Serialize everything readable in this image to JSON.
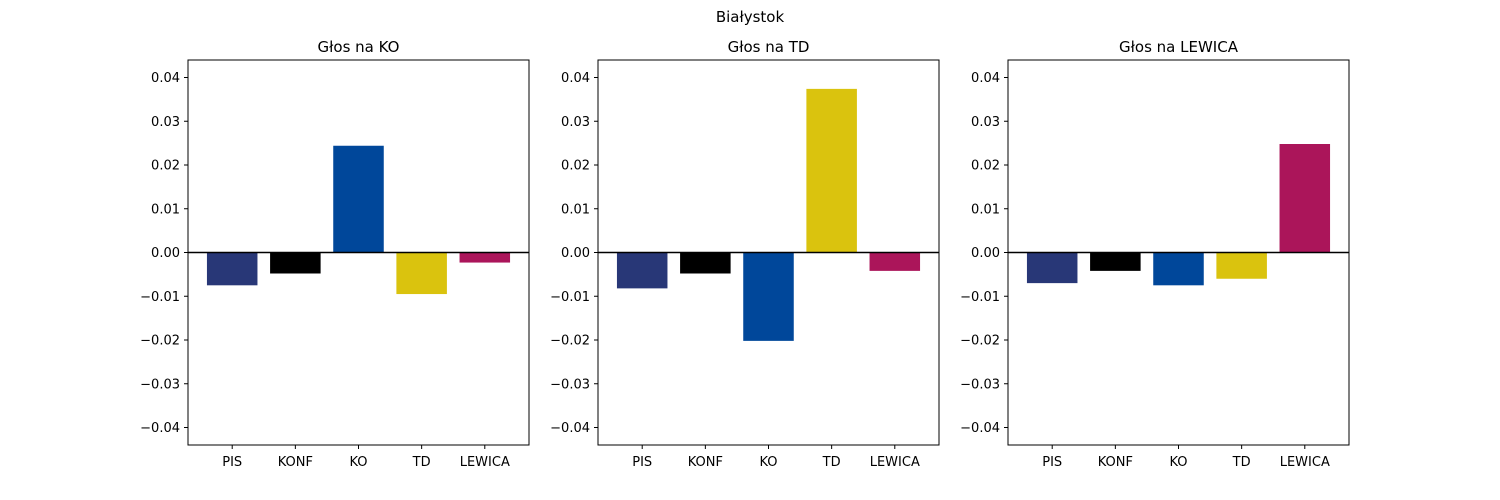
{
  "suptitle": "Białystok",
  "colors": {
    "PIS": "#283777",
    "KONF": "#000000",
    "KO": "#00479A",
    "TD": "#DAC30E",
    "LEWICA": "#AB155A"
  },
  "chart_data": [
    {
      "type": "bar",
      "title": "Głos na KO",
      "categories": [
        "PIS",
        "KONF",
        "KO",
        "TD",
        "LEWICA"
      ],
      "values": [
        -0.0075,
        -0.0048,
        0.0244,
        -0.0095,
        -0.0023
      ],
      "ylim": [
        -0.044,
        0.044
      ],
      "yticks": [
        "−0.04",
        "−0.03",
        "−0.02",
        "−0.01",
        "0.00",
        "0.01",
        "0.02",
        "0.03",
        "0.04"
      ],
      "ytick_values": [
        -0.04,
        -0.03,
        -0.02,
        -0.01,
        0,
        0.01,
        0.02,
        0.03,
        0.04
      ]
    },
    {
      "type": "bar",
      "title": "Głos na TD",
      "categories": [
        "PIS",
        "KONF",
        "KO",
        "TD",
        "LEWICA"
      ],
      "values": [
        -0.0082,
        -0.0048,
        -0.0202,
        0.0374,
        -0.0042
      ],
      "ylim": [
        -0.044,
        0.044
      ],
      "yticks": [
        "−0.04",
        "−0.03",
        "−0.02",
        "−0.01",
        "0.00",
        "0.01",
        "0.02",
        "0.03",
        "0.04"
      ],
      "ytick_values": [
        -0.04,
        -0.03,
        -0.02,
        -0.01,
        0,
        0.01,
        0.02,
        0.03,
        0.04
      ]
    },
    {
      "type": "bar",
      "title": "Głos na LEWICA",
      "categories": [
        "PIS",
        "KONF",
        "KO",
        "TD",
        "LEWICA"
      ],
      "values": [
        -0.007,
        -0.0042,
        -0.0075,
        -0.006,
        0.0248
      ],
      "ylim": [
        -0.044,
        0.044
      ],
      "yticks": [
        "−0.04",
        "−0.03",
        "−0.02",
        "−0.01",
        "0.00",
        "0.01",
        "0.02",
        "0.03",
        "0.04"
      ],
      "ytick_values": [
        -0.04,
        -0.03,
        -0.02,
        -0.01,
        0,
        0.01,
        0.02,
        0.03,
        0.04
      ]
    }
  ]
}
